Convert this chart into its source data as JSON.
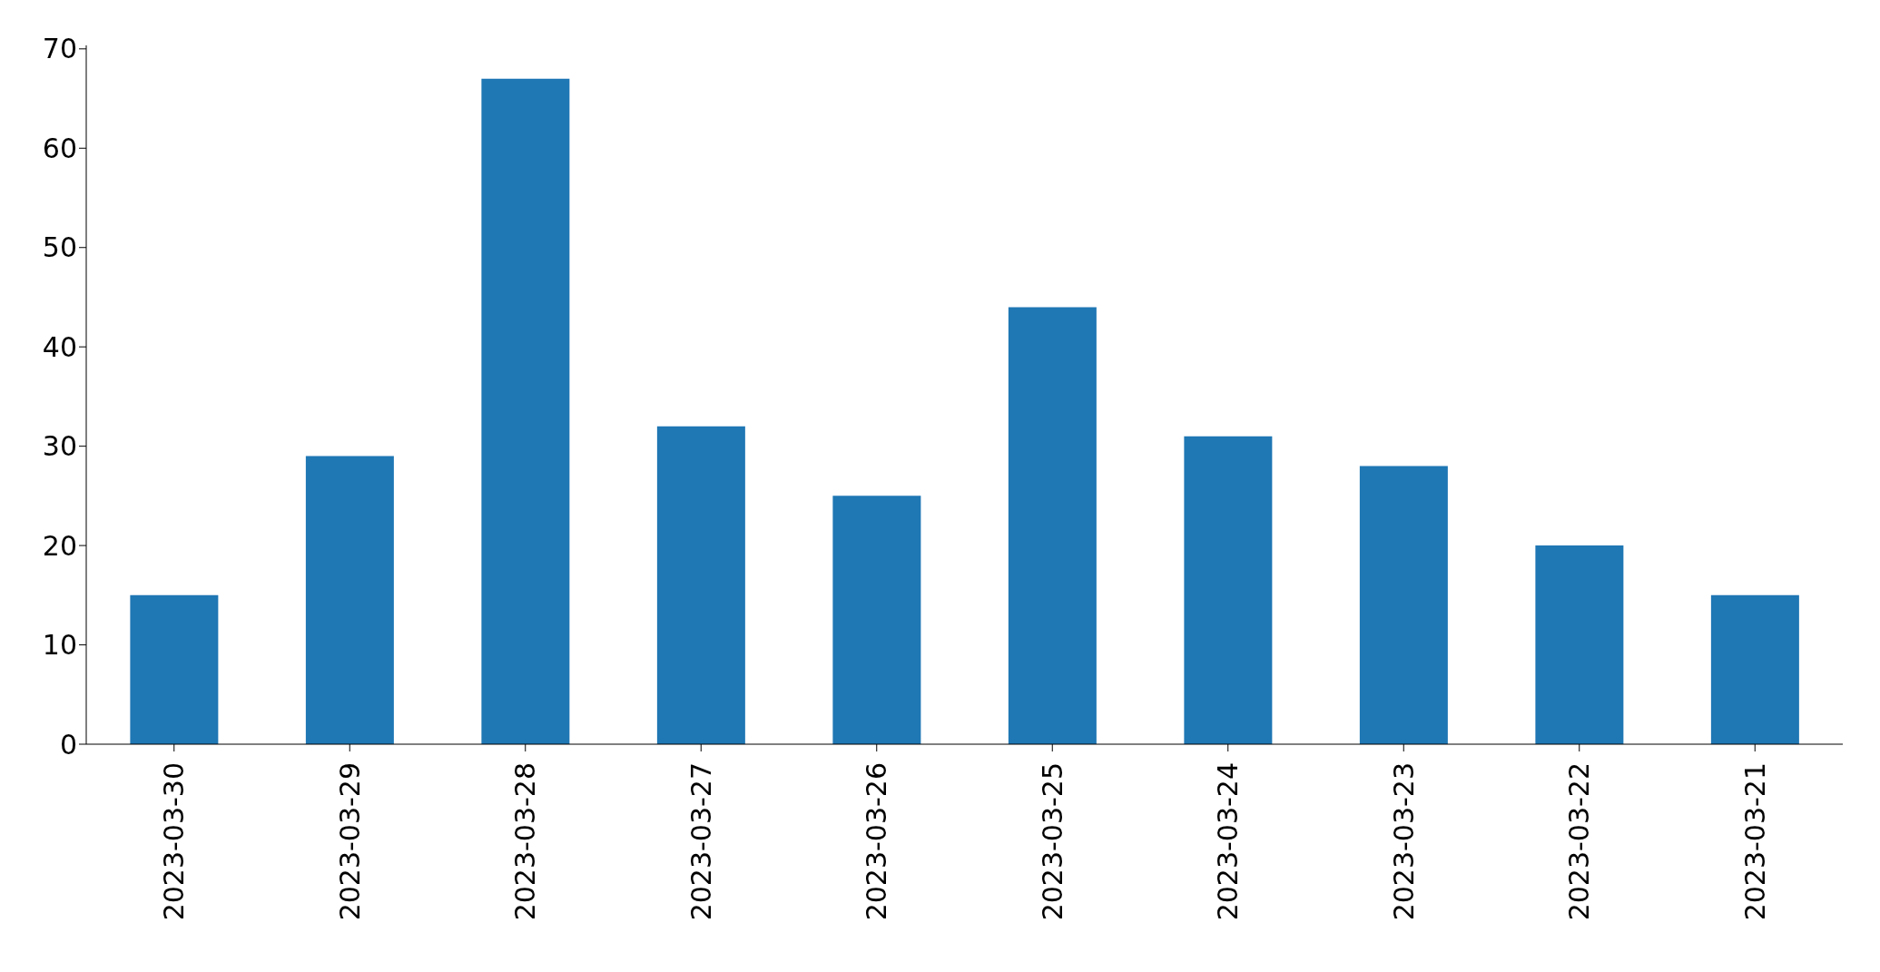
{
  "chart_data": {
    "type": "bar",
    "categories": [
      "2023-03-30",
      "2023-03-29",
      "2023-03-28",
      "2023-03-27",
      "2023-03-26",
      "2023-03-25",
      "2023-03-24",
      "2023-03-23",
      "2023-03-22",
      "2023-03-21"
    ],
    "values": [
      15,
      29,
      67,
      32,
      25,
      44,
      31,
      28,
      20,
      15
    ],
    "color": "#1f77b4",
    "ylim": [
      0,
      70.35
    ],
    "yticks": [
      0,
      10,
      20,
      30,
      40,
      50,
      60,
      70
    ],
    "grid": false,
    "legend": false
  }
}
